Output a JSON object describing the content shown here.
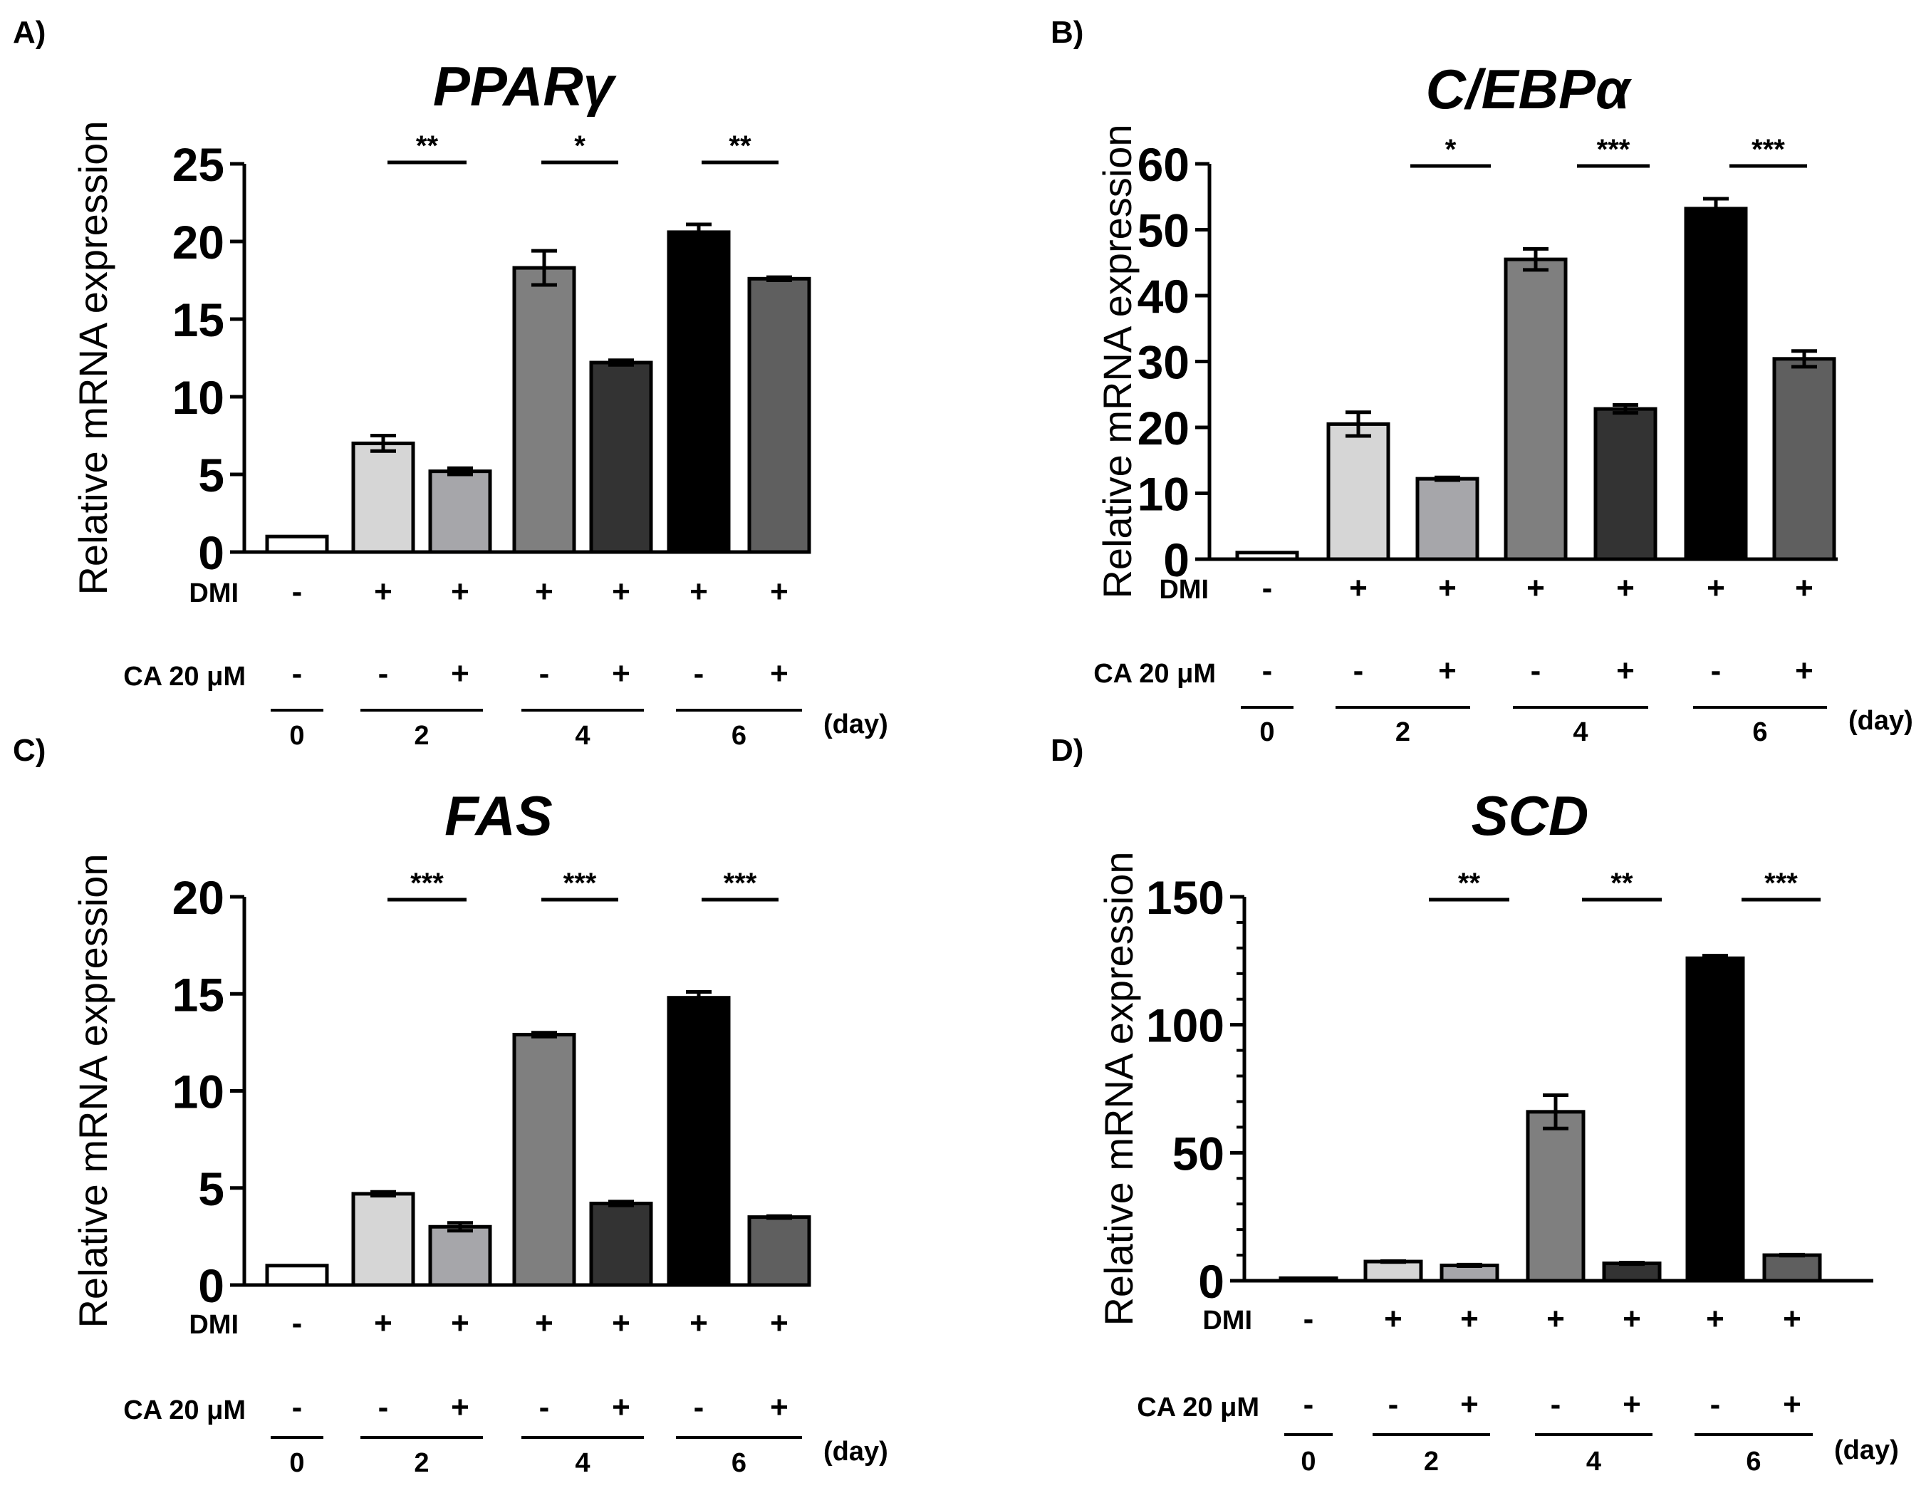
{
  "chart_data": [
    {
      "type": "bar",
      "panel": "A)",
      "title": "PPARγ",
      "ylabel": "Relative mRNA expression",
      "ylim": [
        0,
        25
      ],
      "yticks": [
        "0",
        "5",
        "10",
        "15",
        "20",
        "25"
      ],
      "values": [
        1.0,
        7.0,
        5.2,
        18.3,
        12.2,
        20.6,
        17.6
      ],
      "errors": [
        0,
        0.5,
        0.2,
        1.1,
        0.15,
        0.5,
        0.1
      ],
      "significance": [
        "**",
        "*",
        "**"
      ]
    },
    {
      "type": "bar",
      "panel": "B)",
      "title": "C/EBPα",
      "ylabel": "Relative mRNA expression",
      "ylim": [
        0,
        60
      ],
      "yticks": [
        "0",
        "10",
        "20",
        "30",
        "40",
        "50",
        "60"
      ],
      "values": [
        1.0,
        20.5,
        12.2,
        45.5,
        22.8,
        53.2,
        30.4
      ],
      "errors": [
        0,
        1.8,
        0.2,
        1.6,
        0.6,
        1.5,
        1.2
      ],
      "significance": [
        "*",
        "***",
        "***"
      ]
    },
    {
      "type": "bar",
      "panel": "C)",
      "title": "FAS",
      "ylabel": "Relative mRNA expression",
      "ylim": [
        0,
        20
      ],
      "yticks": [
        "0",
        "5",
        "10",
        "15",
        "20"
      ],
      "values": [
        1.0,
        4.7,
        3.0,
        12.9,
        4.2,
        14.8,
        3.5
      ],
      "errors": [
        0,
        0.1,
        0.2,
        0.1,
        0.1,
        0.3,
        0.05
      ],
      "significance": [
        "***",
        "***",
        "***"
      ]
    },
    {
      "type": "bar",
      "panel": "D)",
      "title": "SCD",
      "ylabel": "Relative mRNA expression",
      "ylim": [
        0,
        150
      ],
      "yticks": [
        "0",
        "50",
        "100",
        "150"
      ],
      "values": [
        1.0,
        7.5,
        6.0,
        66.0,
        6.8,
        126.0,
        10.0
      ],
      "errors": [
        0,
        0.2,
        0.3,
        6.5,
        0.3,
        1.0,
        0.2
      ],
      "significance": [
        "**",
        "**",
        "***"
      ]
    }
  ],
  "bar_colors": [
    "#ffffff",
    "#d6d6d6",
    "#a6a6aa",
    "#7f7f7f",
    "#333333",
    "#000000",
    "#5f5f5f"
  ],
  "treatment": {
    "dmi_label": "DMI",
    "dmi_signs": [
      "-",
      "+",
      "+",
      "+",
      "+",
      "+",
      "+"
    ],
    "ca_label": "CA 20 μM",
    "ca_signs": [
      "-",
      "-",
      "+",
      "-",
      "+",
      "-",
      "+"
    ],
    "days": [
      "0",
      "2",
      "4",
      "6"
    ],
    "day_unit": "(day)"
  }
}
